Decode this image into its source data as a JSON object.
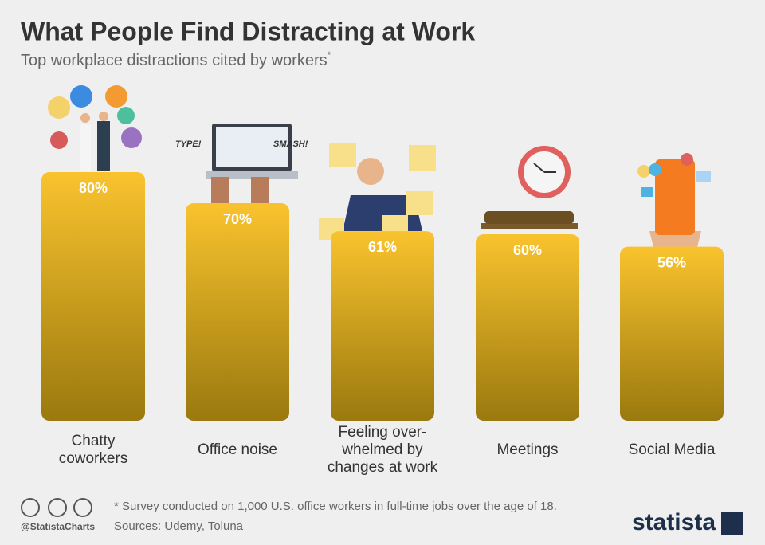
{
  "chart_data": {
    "type": "bar",
    "title": "What People Find Distracting at Work",
    "subtitle": "Top workplace distractions cited by workers",
    "subtitle_marker": "*",
    "categories": [
      "Chatty coworkers",
      "Office noise",
      "Feeling over-whelmed by changes at work",
      "Meetings",
      "Social Media"
    ],
    "values": [
      80,
      70,
      61,
      60,
      56
    ],
    "value_labels": [
      "80%",
      "70%",
      "61%",
      "60%",
      "56%"
    ],
    "gradient": [
      "#f9c32e",
      "#9a790e"
    ],
    "footnote": "* Survey conducted on 1,000 U.S. office workers in full-time jobs over the age of 18.",
    "sources": "Sources: Udemy, Toluna",
    "handle": "@StatistaCharts",
    "brand": "statista"
  }
}
